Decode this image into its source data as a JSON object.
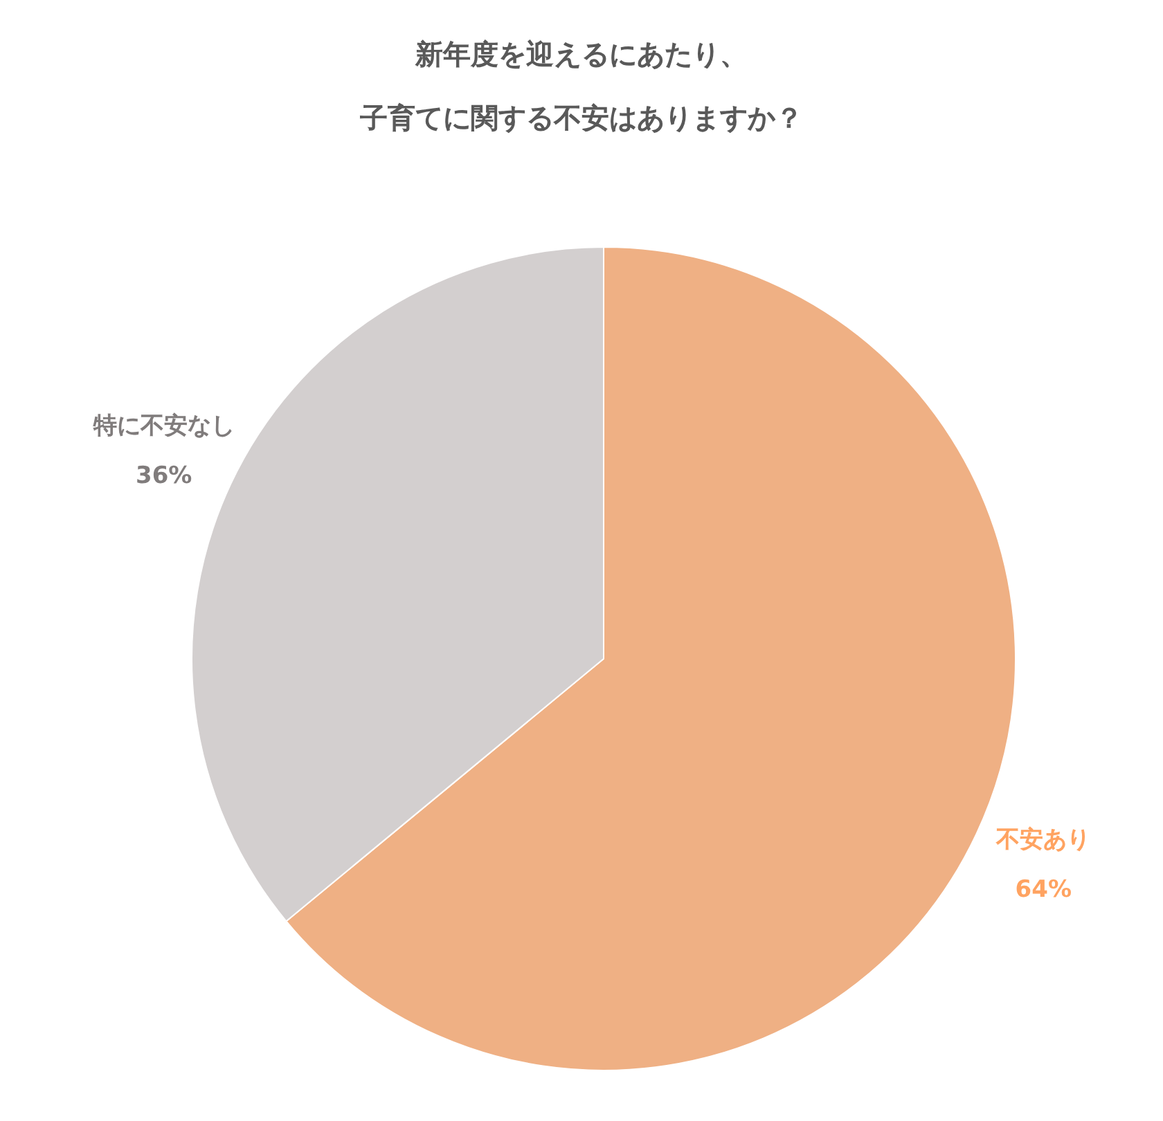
{
  "chart_data": {
    "type": "pie",
    "title": "新年度を迎えるにあたり、子育てに関する不安はありますか？",
    "categories": [
      "不安あり",
      "特に不安なし"
    ],
    "values": [
      64,
      36
    ],
    "colors": [
      "#efb084",
      "#d3cfcf"
    ],
    "value_labels": [
      "64%",
      "36%"
    ],
    "legend": false
  }
}
